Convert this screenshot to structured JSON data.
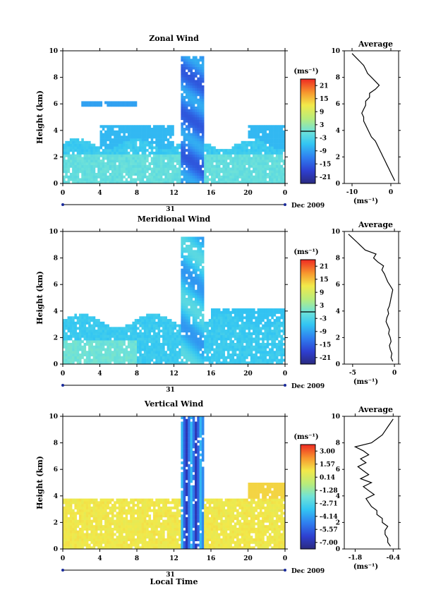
{
  "chart_data": [
    {
      "type": "heatmap",
      "title": "Zonal Wind",
      "ylabel": "Height (km)",
      "xlabel": "",
      "xlim": [
        0,
        24
      ],
      "ylim": [
        0,
        10
      ],
      "x_ticks": [
        "0",
        "4",
        "8",
        "12",
        "16",
        "20",
        "0"
      ],
      "y_ticks": [
        "0",
        "2",
        "4",
        "6",
        "8",
        "10"
      ],
      "date_day": "31",
      "date_month": "Dec 2009",
      "colorbar": {
        "unit": "(ms⁻¹)",
        "ticks": [
          "21",
          "15",
          "9",
          "3",
          "-3",
          "-9",
          "-15",
          "-21"
        ],
        "range": [
          -24,
          24
        ],
        "zero_line": 0
      },
      "profile": {
        "title": "Average",
        "xlabel": "(ms⁻¹)",
        "x_ticks": [
          "-10",
          "0"
        ],
        "x_tick_values": [
          -10,
          0
        ],
        "xlim": [
          -12,
          2
        ],
        "y_ticks": [
          "0",
          "2",
          "4",
          "6",
          "8",
          "10"
        ],
        "height": [
          0.2,
          0.5,
          0.8,
          1.1,
          1.4,
          1.7,
          2.0,
          2.3,
          2.6,
          2.9,
          3.2,
          3.5,
          3.8,
          4.1,
          4.4,
          4.7,
          5.0,
          5.3,
          5.6,
          5.9,
          6.2,
          6.5,
          6.8,
          7.1,
          7.4,
          7.7,
          8.0,
          8.3,
          8.6,
          8.9,
          9.2,
          9.5,
          9.8
        ],
        "values": [
          1,
          0.5,
          0,
          -0.5,
          -1,
          -1.5,
          -2,
          -2.5,
          -3,
          -3.5,
          -4,
          -5,
          -5.5,
          -6,
          -6.5,
          -7,
          -7,
          -7.5,
          -7,
          -6.5,
          -6.5,
          -5.5,
          -5.5,
          -4,
          -3,
          -4,
          -5,
          -6,
          -6.5,
          -7,
          -8,
          -9,
          -10
        ]
      }
    },
    {
      "type": "heatmap",
      "title": "Meridional Wind",
      "ylabel": "Height (km)",
      "xlabel": "",
      "xlim": [
        0,
        24
      ],
      "ylim": [
        0,
        10
      ],
      "x_ticks": [
        "0",
        "4",
        "8",
        "12",
        "16",
        "20",
        "0"
      ],
      "y_ticks": [
        "0",
        "2",
        "4",
        "6",
        "8",
        "10"
      ],
      "date_day": "31",
      "date_month": "Dec 2009",
      "colorbar": {
        "unit": "(ms⁻¹)",
        "ticks": [
          "21",
          "15",
          "9",
          "3",
          "-3",
          "-9",
          "-15",
          "-21"
        ],
        "range": [
          -24,
          24
        ],
        "zero_line": 0
      },
      "profile": {
        "title": "Average",
        "xlabel": "(ms⁻¹)",
        "x_ticks": [
          "-5",
          "0"
        ],
        "x_tick_values": [
          -5,
          0
        ],
        "xlim": [
          -6,
          0.5
        ],
        "y_ticks": [
          "0",
          "2",
          "4",
          "6",
          "8",
          "10"
        ],
        "height": [
          0.2,
          0.5,
          0.8,
          1.1,
          1.4,
          1.7,
          2.0,
          2.3,
          2.6,
          2.9,
          3.2,
          3.5,
          3.8,
          4.1,
          4.4,
          4.7,
          5.0,
          5.3,
          5.6,
          5.9,
          6.2,
          6.5,
          6.8,
          7.1,
          7.4,
          7.7,
          8.0,
          8.3,
          8.6,
          8.9,
          9.2,
          9.5,
          9.8
        ],
        "values": [
          -0.2,
          -0.4,
          -0.3,
          -0.5,
          -0.6,
          -0.4,
          -0.5,
          -0.7,
          -0.6,
          -0.8,
          -1.0,
          -0.9,
          -0.7,
          -0.8,
          -0.6,
          -0.5,
          -0.4,
          -0.3,
          -0.2,
          -0.5,
          -0.8,
          -1.0,
          -1.2,
          -1.5,
          -1.3,
          -2.0,
          -2.5,
          -2.2,
          -3.5,
          -4.0,
          -4.5,
          -5.0,
          -5.5
        ]
      }
    },
    {
      "type": "heatmap",
      "title": "Vertical Wind",
      "ylabel": "Height (km)",
      "xlabel": "Local Time",
      "xlim": [
        0,
        24
      ],
      "ylim": [
        0,
        10
      ],
      "x_ticks": [
        "0",
        "4",
        "8",
        "12",
        "16",
        "20",
        "0"
      ],
      "y_ticks": [
        "0",
        "2",
        "4",
        "6",
        "8",
        "10"
      ],
      "date_day": "31",
      "date_month": "Dec 2009",
      "colorbar": {
        "unit": "(ms⁻¹)",
        "ticks": [
          "3.00",
          "1.57",
          "0.14",
          "-1.28",
          "-2.71",
          "-4.14",
          "-5.57",
          "-7.00"
        ],
        "range": [
          -7.7,
          3.7
        ]
      },
      "profile": {
        "title": "Average",
        "xlabel": "(ms⁻¹)",
        "x_ticks": [
          "-1.8",
          "-0.4"
        ],
        "x_tick_values": [
          -1.8,
          -0.4
        ],
        "xlim": [
          -2.2,
          -0.2
        ],
        "y_ticks": [
          "0",
          "2",
          "4",
          "6",
          "8",
          "10"
        ],
        "height": [
          0.2,
          0.5,
          0.8,
          1.1,
          1.4,
          1.7,
          2.0,
          2.3,
          2.6,
          2.9,
          3.2,
          3.5,
          3.8,
          4.1,
          4.4,
          4.7,
          5.0,
          5.3,
          5.6,
          5.9,
          6.2,
          6.5,
          6.8,
          7.1,
          7.4,
          7.7,
          8.0,
          8.3,
          8.6,
          8.9,
          9.2,
          9.5,
          9.8
        ],
        "values": [
          -0.5,
          -0.6,
          -0.6,
          -0.7,
          -0.7,
          -0.6,
          -0.8,
          -0.8,
          -1.0,
          -1.0,
          -1.2,
          -1.3,
          -1.4,
          -1.1,
          -1.3,
          -1.5,
          -1.2,
          -1.6,
          -1.3,
          -1.5,
          -1.7,
          -1.4,
          -1.6,
          -1.3,
          -1.5,
          -1.8,
          -1.2,
          -1.0,
          -0.8,
          -0.7,
          -0.6,
          -0.5,
          -0.4
        ]
      }
    }
  ]
}
